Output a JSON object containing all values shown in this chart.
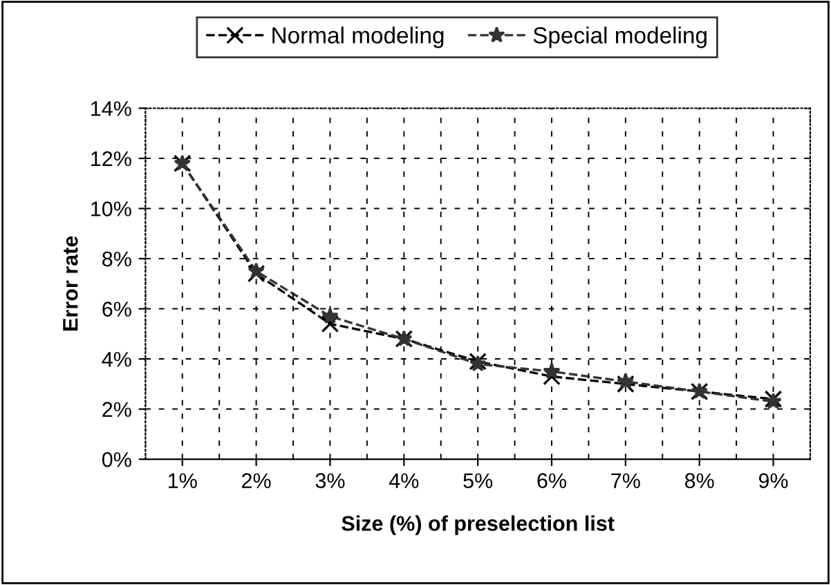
{
  "chart_data": {
    "type": "line",
    "xlabel": "Size (%) of preselection list",
    "ylabel": "Error rate",
    "categories": [
      "1%",
      "2%",
      "3%",
      "4%",
      "5%",
      "6%",
      "7%",
      "8%",
      "9%"
    ],
    "series": [
      {
        "name": "Normal modeling",
        "color": "#000000",
        "marker": "cross",
        "values": [
          11.8,
          7.4,
          5.4,
          4.8,
          3.9,
          3.3,
          3.0,
          2.7,
          2.4
        ]
      },
      {
        "name": "Special modeling",
        "color": "#333333",
        "marker": "star",
        "values": [
          11.8,
          7.5,
          5.7,
          4.8,
          3.8,
          3.5,
          3.1,
          2.7,
          2.3
        ]
      }
    ],
    "ylim": [
      0,
      14
    ],
    "yticks": [
      {
        "value": 0,
        "label": "0%"
      },
      {
        "value": 2,
        "label": "2%"
      },
      {
        "value": 4,
        "label": "4%"
      },
      {
        "value": 6,
        "label": "6%"
      },
      {
        "value": 8,
        "label": "8%"
      },
      {
        "value": 10,
        "label": "10%"
      },
      {
        "value": 12,
        "label": "12%"
      },
      {
        "value": 14,
        "label": "14%"
      }
    ],
    "grid": true,
    "legend": "top",
    "line_style": "dashed"
  }
}
